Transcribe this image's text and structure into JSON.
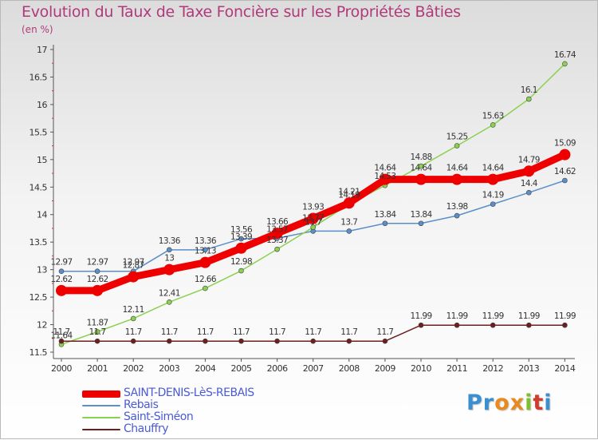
{
  "title": "Evolution du Taux de Taxe Foncière sur les Propriétés Bâties",
  "subtitle": "(en %)",
  "logo": {
    "text": "Proxiti",
    "colors": [
      "#3a8fd1",
      "#3a8fd1",
      "#e98a1f",
      "#e98a1f",
      "#7fbf2a",
      "#d23a2a",
      "#3a8fd1"
    ]
  },
  "chart_data": {
    "type": "line",
    "x": [
      "2000",
      "2001",
      "2002",
      "2003",
      "2004",
      "2005",
      "2006",
      "2007",
      "2008",
      "2009",
      "2010",
      "2011",
      "2012",
      "2013",
      "2014"
    ],
    "ylim": [
      11.5,
      17
    ],
    "yticks": [
      "11.5",
      "12",
      "12.5",
      "13",
      "13.5",
      "14",
      "14.5",
      "15",
      "15.5",
      "16",
      "16.5",
      "17"
    ],
    "grid": false,
    "legend_position": "bottom-left",
    "series": [
      {
        "name": "SAINT-DENIS-LèS-REBAIS",
        "color": "#ee0000",
        "width": 9,
        "marker": 7,
        "values": [
          12.62,
          12.62,
          12.87,
          13,
          13.13,
          13.39,
          13.66,
          13.93,
          14.21,
          14.64,
          14.64,
          14.64,
          14.64,
          14.79,
          15.09
        ],
        "labels": [
          "12.62",
          "12.62",
          "12.87",
          "13",
          "13.13",
          "13.39",
          "13.66",
          "13.93",
          "14.21",
          "14.64",
          "14.64",
          "14.64",
          "14.64",
          "14.79",
          "15.09"
        ]
      },
      {
        "name": "Rebais",
        "color": "#5b8fc9",
        "width": 1.5,
        "marker": 3,
        "values": [
          12.97,
          12.97,
          12.97,
          13.36,
          13.36,
          13.56,
          13.57,
          13.7,
          13.7,
          13.84,
          13.84,
          13.98,
          14.19,
          14.4,
          14.62
        ],
        "labels": [
          "12.97",
          "12.97",
          "12.97",
          "13.36",
          "13.36",
          "13.56",
          "13.57",
          "13.7",
          "13.7",
          "13.84",
          "13.84",
          "13.98",
          "14.19",
          "14.4",
          "14.62"
        ]
      },
      {
        "name": "Saint-Siméon",
        "color": "#8bd150",
        "width": 1.5,
        "marker": 3,
        "values": [
          11.64,
          11.87,
          12.11,
          12.41,
          12.66,
          12.98,
          13.37,
          13.77,
          14.19,
          14.53,
          14.88,
          15.25,
          15.63,
          16.1,
          16.74
        ],
        "labels": [
          "11.64",
          "11.87",
          "12.11",
          "12.41",
          "12.66",
          "12.98",
          "13.37",
          "13.77",
          "14.19",
          "14.53",
          "14.88",
          "15.25",
          "15.63",
          "16.1",
          "16.74"
        ]
      },
      {
        "name": "Chauffry",
        "color": "#6e1e1e",
        "width": 1.5,
        "marker": 3,
        "values": [
          11.7,
          11.7,
          11.7,
          11.7,
          11.7,
          11.7,
          11.7,
          11.7,
          11.7,
          11.7,
          11.99,
          11.99,
          11.99,
          11.99,
          11.99
        ],
        "labels": [
          "11.7",
          "11.7",
          "11.7",
          "11.7",
          "11.7",
          "11.7",
          "11.7",
          "11.7",
          "11.7",
          "11.7",
          "11.99",
          "11.99",
          "11.99",
          "11.99",
          "11.99"
        ]
      }
    ]
  }
}
